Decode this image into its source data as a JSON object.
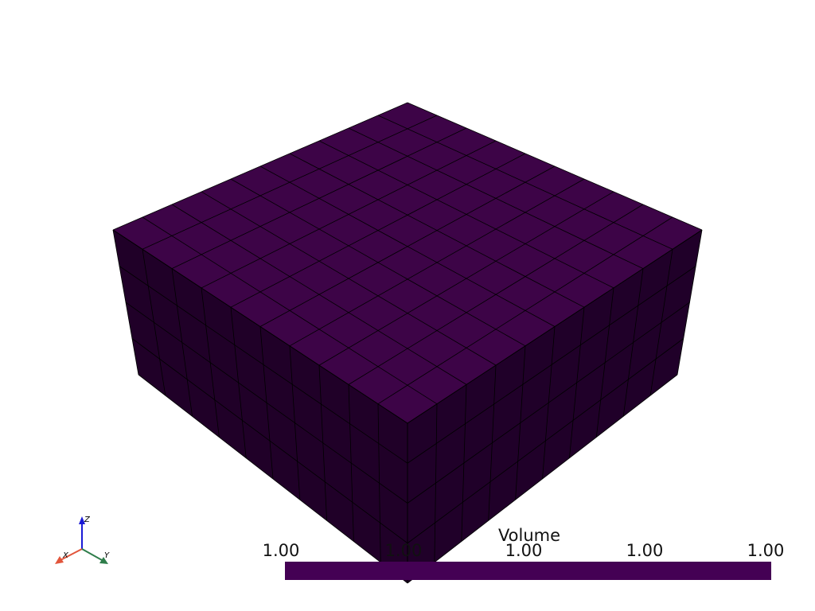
{
  "scene": {
    "mesh": {
      "nx": 10,
      "ny": 10,
      "nz": 4
    },
    "colors": {
      "top": "#3d0447",
      "left": "#200028",
      "right": "#200029",
      "edges": "#000000"
    }
  },
  "colorbar": {
    "title": "Volume",
    "color": "#440154",
    "ticks": [
      "1.00",
      "1.00",
      "1.00",
      "1.00",
      "1.00"
    ]
  },
  "axes": {
    "x_label": "X",
    "y_label": "Y",
    "z_label": "Z",
    "x_color": "#e2553b",
    "y_color": "#2e7d4a",
    "z_color": "#1b1bd6"
  }
}
